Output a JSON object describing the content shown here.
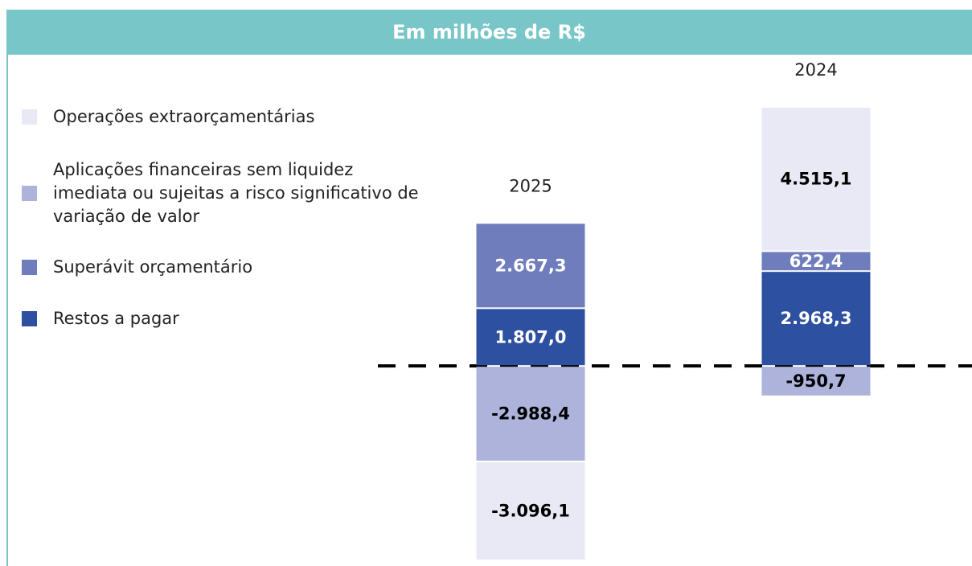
{
  "chart_data": {
    "type": "stacked_bar",
    "title": "Em milhões de R$",
    "categories": [
      "2025",
      "2024"
    ],
    "series": [
      {
        "name": "Operações extraorçamentárias",
        "color": "#e9e9f5",
        "values": [
          -3096.1,
          4515.1
        ],
        "value_labels": [
          "-3.096,1",
          "4.515,1"
        ]
      },
      {
        "name": "Aplicações financeiras sem liquidez imediata ou sujeitas a risco significativo de variação de valor",
        "color": "#adb3db",
        "values": [
          -2988.4,
          -950.7
        ],
        "value_labels": [
          "-2.988,4",
          "-950,7"
        ]
      },
      {
        "name": "Superávit orçamentário",
        "color": "#6f7dbd",
        "values": [
          2667.3,
          622.4
        ],
        "value_labels": [
          "2.667,3",
          "622,4"
        ]
      },
      {
        "name": "Restos a pagar",
        "color": "#2e50a0",
        "values": [
          1807.0,
          2968.3
        ],
        "value_labels": [
          "1.807,0",
          "2.968,3"
        ]
      }
    ]
  }
}
